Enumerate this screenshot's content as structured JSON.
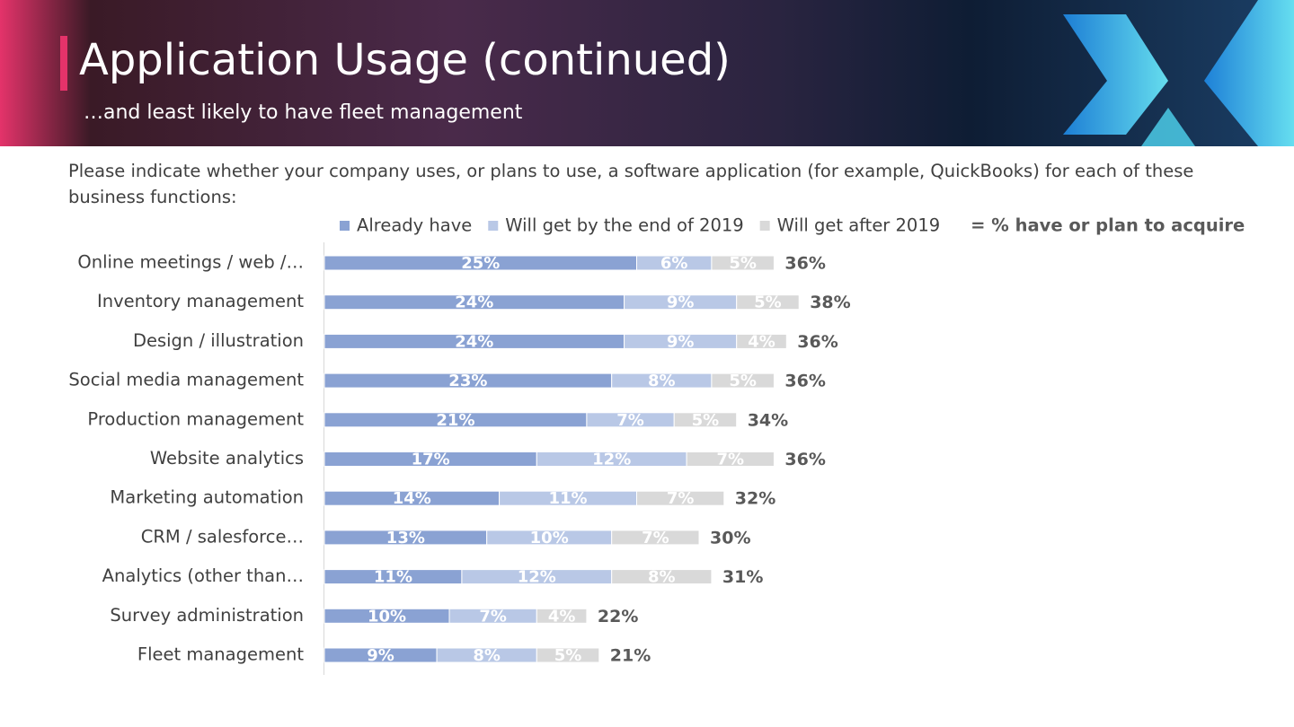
{
  "header": {
    "title": "Application Usage (continued)",
    "subtitle": "…and least likely to have fleet management"
  },
  "question": "Please indicate whether your company uses, or plans to use, a software application (for example, QuickBooks) for each of these business functions:",
  "chart_data": {
    "type": "stacked-bar-horizontal",
    "categories": [
      "Online meetings / web /…",
      "Inventory management",
      "Design / illustration",
      "Social media management",
      "Production management",
      "Website analytics",
      "Marketing automation",
      "CRM / salesforce…",
      "Analytics (other than…",
      "Survey administration",
      "Fleet management"
    ],
    "series": [
      {
        "name": "Already have",
        "color": "#8aa2d3",
        "values": [
          25,
          24,
          24,
          23,
          21,
          17,
          14,
          13,
          11,
          10,
          9
        ],
        "value_labels": [
          "25%",
          "24%",
          "24%",
          "23%",
          "21%",
          "17%",
          "14%",
          "13%",
          "11%",
          "10%",
          "9%"
        ]
      },
      {
        "name": "Will get by the end of 2019",
        "color": "#b9c8e6",
        "values": [
          6,
          9,
          9,
          8,
          7,
          12,
          11,
          10,
          12,
          7,
          8
        ],
        "value_labels": [
          "6%",
          "9%",
          "9%",
          "8%",
          "7%",
          "12%",
          "11%",
          "10%",
          "12%",
          "7%",
          "8%"
        ]
      },
      {
        "name": "Will get after 2019",
        "color": "#d9d9d9",
        "values": [
          5,
          5,
          4,
          5,
          5,
          7,
          7,
          7,
          8,
          4,
          5
        ],
        "value_labels": [
          "5%",
          "5%",
          "4%",
          "5%",
          "5%",
          "7%",
          "7%",
          "7%",
          "8%",
          "4%",
          "5%"
        ]
      }
    ],
    "totals_name": "= % have or plan to acquire",
    "totals": [
      36,
      38,
      36,
      36,
      34,
      36,
      32,
      30,
      31,
      22,
      21
    ],
    "totals_labels": [
      "36%",
      "38%",
      "36%",
      "36%",
      "34%",
      "36%",
      "32%",
      "30%",
      "31%",
      "22%",
      "21%"
    ]
  }
}
